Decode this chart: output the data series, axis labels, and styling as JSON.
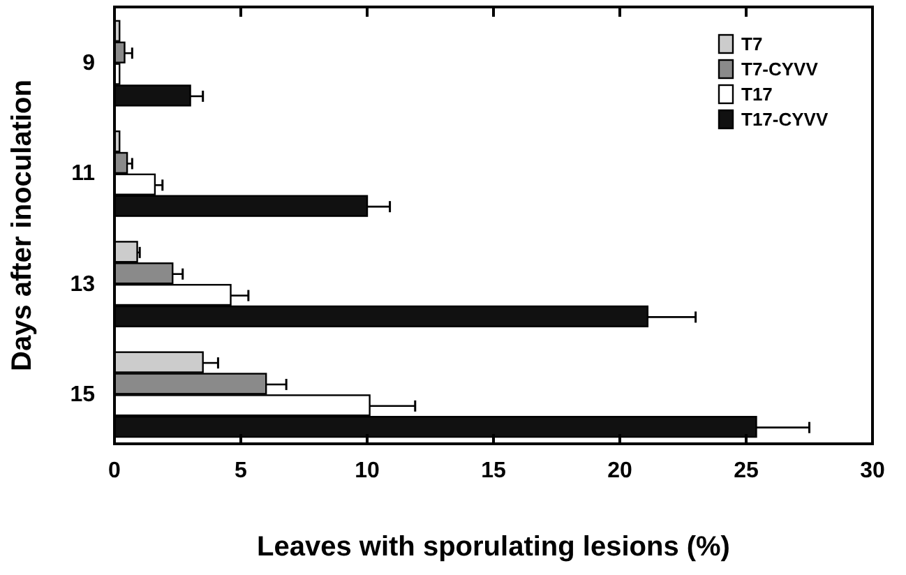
{
  "chart_data": {
    "type": "bar",
    "orientation": "horizontal",
    "xlabel": "Leaves with sporulating lesions (%)",
    "ylabel": "Days after inoculation",
    "categories": [
      "9",
      "11",
      "13",
      "15"
    ],
    "series": [
      {
        "name": "T7",
        "color": "#cccccc",
        "values": [
          0.2,
          0.2,
          0.9,
          3.5
        ],
        "errors": [
          null,
          null,
          [
            0.9,
            1.0
          ],
          [
            3.5,
            4.1
          ]
        ]
      },
      {
        "name": "T7-CYVV",
        "color": "#8a8a8a",
        "values": [
          0.4,
          0.5,
          2.3,
          6.0
        ],
        "errors": [
          [
            0.4,
            0.7
          ],
          [
            0.5,
            0.7
          ],
          [
            2.3,
            2.7
          ],
          [
            6.0,
            6.8
          ]
        ]
      },
      {
        "name": "T17",
        "color": "#ffffff",
        "values": [
          0.2,
          1.6,
          4.6,
          10.1
        ],
        "errors": [
          null,
          [
            1.6,
            1.9
          ],
          [
            4.6,
            5.3
          ],
          [
            10.1,
            11.9
          ]
        ]
      },
      {
        "name": "T17-CYVV",
        "color": "#111111",
        "values": [
          3.0,
          10.0,
          21.1,
          25.4
        ],
        "errors": [
          [
            3.0,
            3.5
          ],
          [
            10.0,
            10.9
          ],
          [
            21.1,
            23.0
          ],
          [
            25.4,
            27.5
          ]
        ]
      }
    ],
    "xlim": [
      0,
      30
    ],
    "xticks": [
      0,
      5,
      10,
      15,
      20,
      25,
      30
    ],
    "legend": "top right"
  }
}
